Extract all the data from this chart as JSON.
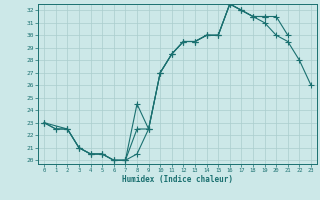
{
  "xlabel": "Humidex (Indice chaleur)",
  "bg_color": "#cce8e8",
  "grid_color": "#aacece",
  "line_color": "#1a7070",
  "xlim": [
    -0.5,
    23.5
  ],
  "ylim": [
    19.7,
    32.5
  ],
  "xticks": [
    0,
    1,
    2,
    3,
    4,
    5,
    6,
    7,
    8,
    9,
    10,
    11,
    12,
    13,
    14,
    15,
    16,
    17,
    18,
    19,
    20,
    21,
    22,
    23
  ],
  "yticks": [
    20,
    21,
    22,
    23,
    24,
    25,
    26,
    27,
    28,
    29,
    30,
    31,
    32
  ],
  "line1_x": [
    0,
    1,
    2,
    3,
    4,
    5,
    6,
    7,
    8,
    9,
    10,
    11,
    12,
    13,
    14,
    15,
    16,
    17,
    18,
    19,
    20,
    21,
    22,
    23
  ],
  "line1_y": [
    23,
    22.5,
    22.5,
    21,
    20.5,
    20.5,
    20,
    20,
    20.5,
    22.5,
    27,
    28.5,
    29.5,
    29.5,
    30,
    30,
    32.5,
    32,
    31.5,
    31,
    30,
    29.5,
    28,
    26
  ],
  "line2_x": [
    0,
    1,
    2,
    3,
    4,
    5,
    6,
    7,
    8,
    9,
    10,
    11,
    12,
    13,
    14,
    15,
    16,
    17,
    18,
    19,
    20,
    21
  ],
  "line2_y": [
    23,
    22.5,
    22.5,
    21,
    20.5,
    20.5,
    20,
    20,
    22.5,
    22.5,
    27,
    28.5,
    29.5,
    29.5,
    30,
    30,
    32.5,
    32,
    31.5,
    31.5,
    31.5,
    30
  ],
  "line3_x": [
    0,
    2,
    3,
    4,
    5,
    6,
    7,
    8,
    9,
    10,
    11,
    12,
    13,
    14,
    15,
    16,
    17,
    18,
    19
  ],
  "line3_y": [
    23,
    22.5,
    21,
    20.5,
    20.5,
    20,
    20,
    24.5,
    22.5,
    27,
    28.5,
    29.5,
    29.5,
    30,
    30,
    32.5,
    32,
    31.5,
    31.5
  ]
}
